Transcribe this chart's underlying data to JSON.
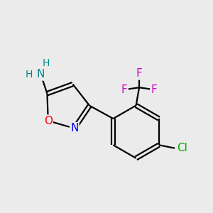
{
  "bg_color": "#ebebeb",
  "bond_color": "#000000",
  "atom_colors": {
    "O": "#ff0000",
    "N": "#0000ee",
    "F": "#cc00cc",
    "Cl": "#00aa00",
    "H_teal": "#008888",
    "N_teal": "#008888"
  },
  "font_size": 11,
  "bond_width": 1.6
}
